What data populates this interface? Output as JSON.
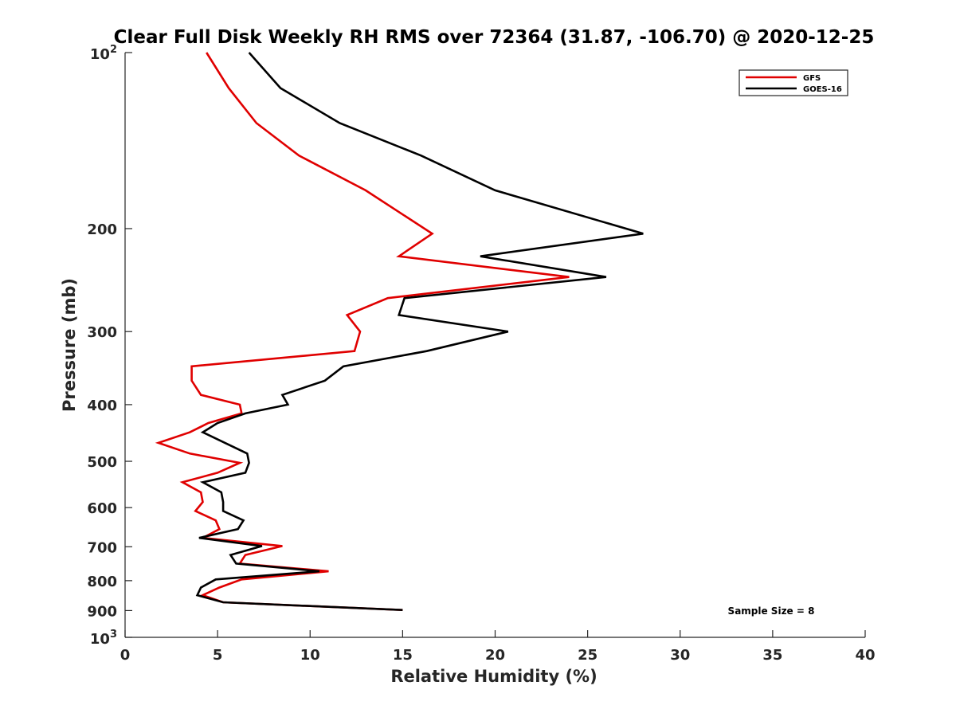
{
  "chart_data": {
    "type": "line",
    "title": "Clear Full Disk Weekly RH RMS over 72364 (31.87, -106.70) @ 2020-12-25",
    "xlabel": "Relative Humidity (%)",
    "ylabel": "Pressure (mb)",
    "xlim": [
      0,
      40
    ],
    "ylim": [
      100,
      1000
    ],
    "y_scale": "log",
    "y_reversed": true,
    "x_ticks": [
      "0",
      "5",
      "10",
      "15",
      "20",
      "25",
      "30",
      "35",
      "40"
    ],
    "y_ticks": [
      {
        "value": 100,
        "base": "10",
        "exp": "2"
      },
      {
        "value": 200,
        "label": "200"
      },
      {
        "value": 300,
        "label": "300"
      },
      {
        "value": 400,
        "label": "400"
      },
      {
        "value": 500,
        "label": "500"
      },
      {
        "value": 600,
        "label": "600"
      },
      {
        "value": 700,
        "label": "700"
      },
      {
        "value": 800,
        "label": "800"
      },
      {
        "value": 900,
        "label": "900"
      },
      {
        "value": 1000,
        "base": "10",
        "exp": "3"
      }
    ],
    "legend_position": "top-right",
    "grid": false,
    "annotation": "Sample Size = 8",
    "series": [
      {
        "name": "GFS",
        "color": "#e00000",
        "points": [
          [
            4.4,
            100
          ],
          [
            5.6,
            115
          ],
          [
            7.1,
            132
          ],
          [
            9.4,
            150
          ],
          [
            13.0,
            172
          ],
          [
            16.6,
            204
          ],
          [
            14.8,
            223
          ],
          [
            24.0,
            242
          ],
          [
            14.2,
            263
          ],
          [
            12.0,
            281
          ],
          [
            12.7,
            300
          ],
          [
            12.4,
            324
          ],
          [
            3.6,
            344
          ],
          [
            3.6,
            364
          ],
          [
            4.1,
            385
          ],
          [
            6.2,
            400
          ],
          [
            6.3,
            414
          ],
          [
            4.5,
            430
          ],
          [
            3.5,
            446
          ],
          [
            1.8,
            465
          ],
          [
            3.5,
            485
          ],
          [
            6.2,
            503
          ],
          [
            5.0,
            523
          ],
          [
            3.1,
            543
          ],
          [
            4.1,
            565
          ],
          [
            4.2,
            587
          ],
          [
            3.8,
            608
          ],
          [
            4.9,
            631
          ],
          [
            5.1,
            653
          ],
          [
            4.2,
            676
          ],
          [
            8.5,
            698
          ],
          [
            6.5,
            723
          ],
          [
            6.2,
            748
          ],
          [
            11.0,
            771
          ],
          [
            6.3,
            796
          ],
          [
            5.1,
            822
          ],
          [
            4.2,
            847
          ],
          [
            5.3,
            871
          ],
          [
            15.0,
            898
          ]
        ]
      },
      {
        "name": "GOES-16",
        "color": "#000000",
        "points": [
          [
            6.7,
            100
          ],
          [
            8.4,
            115
          ],
          [
            11.6,
            132
          ],
          [
            16.0,
            150
          ],
          [
            20.0,
            172
          ],
          [
            28.0,
            204
          ],
          [
            19.2,
            223
          ],
          [
            26.0,
            242
          ],
          [
            15.1,
            263
          ],
          [
            14.8,
            281
          ],
          [
            20.7,
            300
          ],
          [
            16.3,
            324
          ],
          [
            11.8,
            344
          ],
          [
            10.8,
            364
          ],
          [
            8.5,
            385
          ],
          [
            8.8,
            400
          ],
          [
            6.5,
            414
          ],
          [
            5.0,
            430
          ],
          [
            4.2,
            446
          ],
          [
            5.4,
            465
          ],
          [
            6.6,
            485
          ],
          [
            6.7,
            503
          ],
          [
            6.5,
            523
          ],
          [
            4.2,
            543
          ],
          [
            5.2,
            565
          ],
          [
            5.3,
            587
          ],
          [
            5.3,
            608
          ],
          [
            6.4,
            631
          ],
          [
            6.1,
            653
          ],
          [
            4.0,
            676
          ],
          [
            7.4,
            698
          ],
          [
            5.7,
            723
          ],
          [
            6.0,
            748
          ],
          [
            10.5,
            771
          ],
          [
            4.9,
            796
          ],
          [
            4.1,
            822
          ],
          [
            3.9,
            847
          ],
          [
            5.3,
            871
          ],
          [
            15.0,
            898
          ]
        ]
      }
    ]
  }
}
